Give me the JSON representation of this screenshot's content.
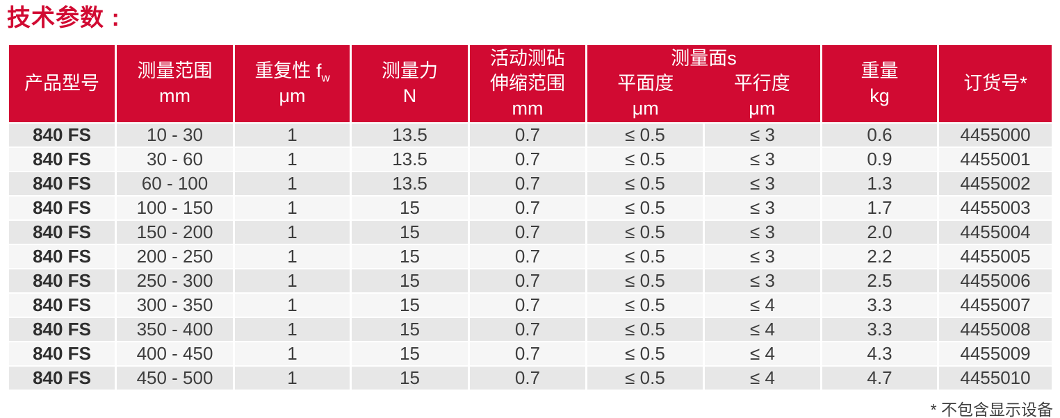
{
  "page": {
    "title": "技术参数 :",
    "footnote": "* 不包含显示设备"
  },
  "colors": {
    "header_red": "#d10a32",
    "header_text": "#ffffff",
    "row_odd": "#e7e7e7",
    "row_even": "#f6f6f6",
    "text": "#3d3d3d"
  },
  "table": {
    "column_keys": [
      "product-model",
      "measuring-range",
      "repeatability",
      "measuring-force",
      "anvil-travel",
      "flatness",
      "parallelism",
      "weight",
      "order-number"
    ],
    "headers": {
      "product_model": "产品型号",
      "measuring_range": {
        "label": "测量范围",
        "unit": "mm"
      },
      "repeatability": {
        "label": "重复性 f",
        "sub": "w",
        "unit": "μm"
      },
      "measuring_force": {
        "label": "测量力",
        "unit": "N"
      },
      "anvil_travel": {
        "line1": "活动测砧",
        "line2": "伸缩范围",
        "unit": "mm"
      },
      "measuring_faces_group": "测量面s",
      "flatness": {
        "label": "平面度",
        "unit": "μm"
      },
      "parallelism": {
        "label": "平行度",
        "unit": "μm"
      },
      "weight": {
        "label": "重量",
        "unit": "kg"
      },
      "order_number": "订货号*"
    },
    "rows": [
      [
        "840 FS",
        "10 - 30",
        "1",
        "13.5",
        "0.7",
        "≤ 0.5",
        "≤ 3",
        "0.6",
        "4455000"
      ],
      [
        "840 FS",
        "30 - 60",
        "1",
        "13.5",
        "0.7",
        "≤ 0.5",
        "≤ 3",
        "0.9",
        "4455001"
      ],
      [
        "840 FS",
        "60 - 100",
        "1",
        "13.5",
        "0.7",
        "≤ 0.5",
        "≤ 3",
        "1.3",
        "4455002"
      ],
      [
        "840 FS",
        "100 - 150",
        "1",
        "15",
        "0.7",
        "≤ 0.5",
        "≤ 3",
        "1.7",
        "4455003"
      ],
      [
        "840 FS",
        "150 - 200",
        "1",
        "15",
        "0.7",
        "≤ 0.5",
        "≤ 3",
        "2.0",
        "4455004"
      ],
      [
        "840 FS",
        "200 - 250",
        "1",
        "15",
        "0.7",
        "≤ 0.5",
        "≤ 3",
        "2.2",
        "4455005"
      ],
      [
        "840 FS",
        "250 - 300",
        "1",
        "15",
        "0.7",
        "≤ 0.5",
        "≤ 3",
        "2.5",
        "4455006"
      ],
      [
        "840 FS",
        "300 - 350",
        "1",
        "15",
        "0.7",
        "≤ 0.5",
        "≤ 4",
        "3.3",
        "4455007"
      ],
      [
        "840 FS",
        "350 - 400",
        "1",
        "15",
        "0.7",
        "≤ 0.5",
        "≤ 4",
        "3.3",
        "4455008"
      ],
      [
        "840 FS",
        "400 - 450",
        "1",
        "15",
        "0.7",
        "≤ 0.5",
        "≤ 4",
        "4.3",
        "4455009"
      ],
      [
        "840 FS",
        "450 - 500",
        "1",
        "15",
        "0.7",
        "≤ 0.5",
        "≤ 4",
        "4.7",
        "4455010"
      ]
    ]
  }
}
